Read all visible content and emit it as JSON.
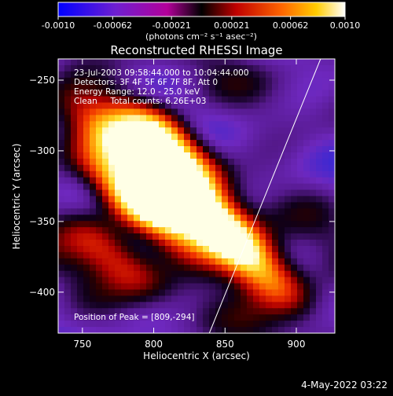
{
  "colorbar": {
    "tick_labels": [
      "-0.0010",
      "-0.00062",
      "-0.00021",
      "0.00021",
      "0.00062",
      "0.0010"
    ],
    "tick_values": [
      -0.001,
      -0.00062,
      -0.00021,
      0.00021,
      0.00062,
      0.001
    ],
    "range": [
      -0.001,
      0.001
    ],
    "units": "(photons cm⁻² s⁻¹ asec⁻²)",
    "stops": [
      "#0000ff",
      "#6e1fd0",
      "#b3009a",
      "#000000",
      "#c00000",
      "#ff6600",
      "#ffcc00",
      "#ffffff"
    ]
  },
  "image": {
    "title": "Reconstructed RHESSI Image",
    "info_lines": [
      "23-Jul-2003 09:58:44.000 to 10:04:44.000",
      "Detectors: 3F 4F 5F 6F 7F 8F, Att 0",
      "Energy Range: 12.0 - 25.0 keV",
      "Clean     Total counts: 6.26E+03"
    ],
    "peak_label": "Position of Peak = [809,-294]"
  },
  "chart_data": {
    "type": "heatmap",
    "title": "Reconstructed RHESSI Image",
    "xlabel": "Heliocentric X (arcsec)",
    "ylabel": "Heliocentric Y (arcsec)",
    "xlim": [
      733,
      927
    ],
    "ylim": [
      -429,
      -235
    ],
    "x_ticks": [
      750,
      800,
      850,
      900
    ],
    "x_tick_labels": [
      "750",
      "800",
      "850",
      "900"
    ],
    "y_ticks": [
      -250,
      -300,
      -350,
      -400
    ],
    "y_tick_labels": [
      "−250",
      "−300",
      "−350",
      "−400"
    ],
    "peak": [
      809,
      -294
    ],
    "limb_line": [
      [
        839,
        -429
      ],
      [
        917,
        -235
      ]
    ],
    "emission_sources": [
      {
        "x": 808,
        "y": -293,
        "amp": 1.0
      },
      {
        "x": 820,
        "y": -330,
        "amp": 0.9
      },
      {
        "x": 802,
        "y": -347,
        "amp": 0.6
      },
      {
        "x": 779,
        "y": -327,
        "amp": 0.55
      },
      {
        "x": 855,
        "y": -362,
        "amp": 0.7
      },
      {
        "x": 762,
        "y": -282,
        "amp": 0.5
      },
      {
        "x": 770,
        "y": -372,
        "amp": 0.55
      },
      {
        "x": 880,
        "y": -390,
        "amp": 0.6
      }
    ]
  },
  "footer": {
    "timestamp": "4-May-2022 03:22"
  }
}
